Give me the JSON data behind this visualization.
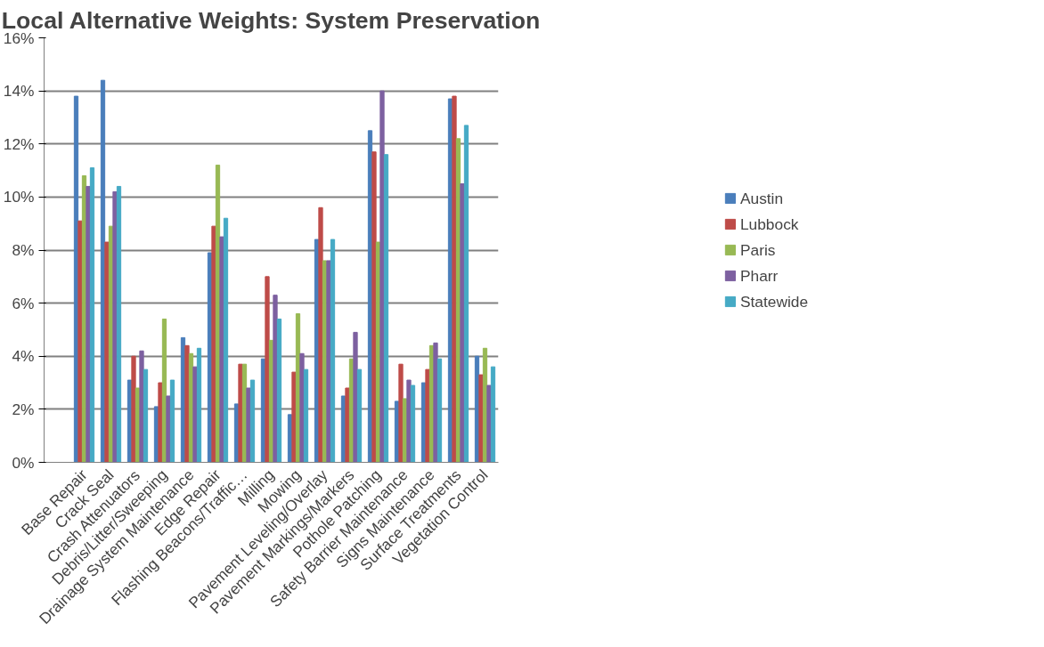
{
  "chart_data": {
    "type": "bar",
    "title": "Local Alternative Weights: System Preservation",
    "categories": [
      null,
      "Base Repair",
      "Crack Seal",
      "Crash Attenuators",
      "Debris/Litter/Sweeping",
      "Drainage System Maintenance",
      "Edge Repair",
      "Flashing Beacons/Traffic…",
      "Milling",
      "Mowing",
      "Pavement Leveling/Overlay",
      "Pavement Markings/Markers",
      "Pothole Patching",
      "Safety Barrier Maintenance",
      "Signs Maintenance",
      "Surface Treatments",
      "Vegetation Control"
    ],
    "series": [
      {
        "name": "Austin",
        "color": "#4a7ebb",
        "values": [
          null,
          13.8,
          14.4,
          3.1,
          2.1,
          4.7,
          7.9,
          2.2,
          3.9,
          1.8,
          8.4,
          2.5,
          12.5,
          2.3,
          3.0,
          13.7,
          4.0
        ]
      },
      {
        "name": "Lubbock",
        "color": "#be4b48",
        "values": [
          null,
          9.1,
          8.3,
          4.0,
          3.0,
          4.4,
          8.9,
          3.7,
          7.0,
          3.4,
          9.6,
          2.8,
          11.7,
          3.7,
          3.5,
          13.8,
          3.3
        ]
      },
      {
        "name": "Paris",
        "color": "#98b954",
        "values": [
          null,
          10.8,
          8.9,
          2.8,
          5.4,
          4.1,
          11.2,
          3.7,
          4.6,
          5.6,
          7.6,
          3.9,
          8.3,
          2.4,
          4.4,
          12.2,
          4.3
        ]
      },
      {
        "name": "Pharr",
        "color": "#7d60a0",
        "values": [
          null,
          10.4,
          10.2,
          4.2,
          2.5,
          3.6,
          8.5,
          2.8,
          6.3,
          4.1,
          7.6,
          4.9,
          14.0,
          3.1,
          4.5,
          10.5,
          2.9
        ]
      },
      {
        "name": "Statewide",
        "color": "#46aac5",
        "values": [
          null,
          11.1,
          10.4,
          3.5,
          3.1,
          4.3,
          9.2,
          3.1,
          5.4,
          3.5,
          8.4,
          3.5,
          11.6,
          2.9,
          3.9,
          12.7,
          3.6
        ]
      }
    ],
    "ylim": [
      0,
      16
    ],
    "yticks": [
      {
        "value": 0,
        "label": "0%"
      },
      {
        "value": 2,
        "label": "2%"
      },
      {
        "value": 4,
        "label": "4%"
      },
      {
        "value": 6,
        "label": "6%"
      },
      {
        "value": 8,
        "label": "8%"
      },
      {
        "value": 10,
        "label": "10%"
      },
      {
        "value": 12,
        "label": "12%"
      },
      {
        "value": 14,
        "label": "14%"
      },
      {
        "value": 16,
        "label": "16%"
      }
    ],
    "grid": "y",
    "legend": "right"
  }
}
